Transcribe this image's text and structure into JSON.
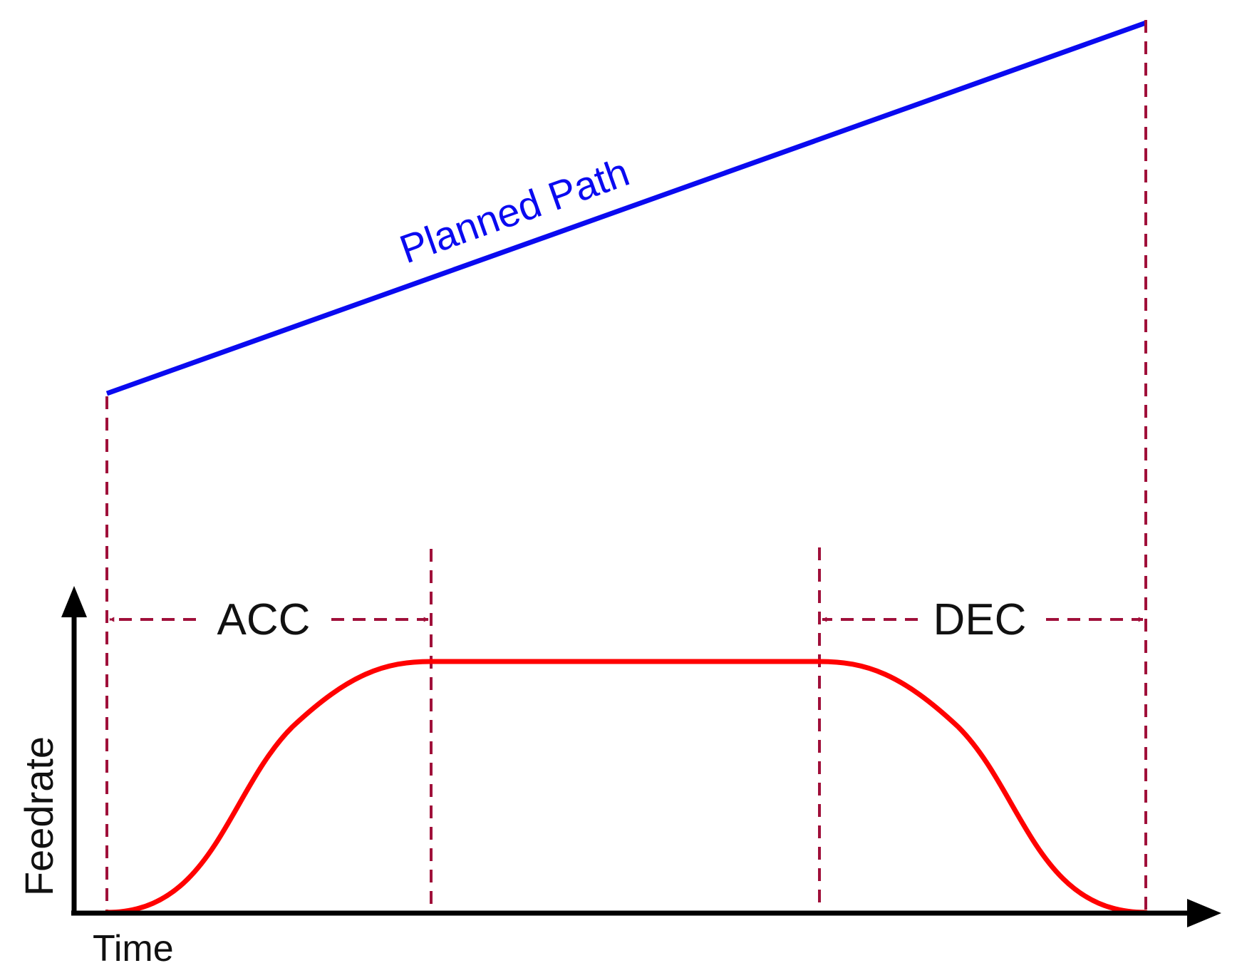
{
  "labels": {
    "planned_path": "Planned Path",
    "acc": "ACC",
    "dec": "DEC",
    "y_axis": "Feedrate",
    "x_axis": "Time"
  },
  "colors": {
    "planned_path": "#0a0af0",
    "feedrate_curve": "#ff0000",
    "guides": "#a0103a",
    "axes": "#000000",
    "text": "#111111"
  }
}
